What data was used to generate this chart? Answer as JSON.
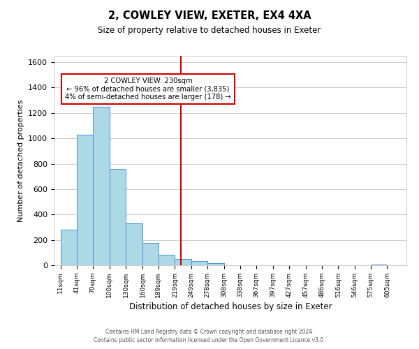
{
  "title": "2, COWLEY VIEW, EXETER, EX4 4XA",
  "subtitle": "Size of property relative to detached houses in Exeter",
  "xlabel": "Distribution of detached houses by size in Exeter",
  "ylabel": "Number of detached properties",
  "bar_left_edges": [
    11,
    41,
    70,
    100,
    130,
    160,
    189,
    219,
    249,
    278,
    308,
    338,
    367,
    397,
    427,
    457,
    486,
    516,
    546,
    575
  ],
  "bar_widths": [
    30,
    29,
    30,
    30,
    30,
    29,
    30,
    30,
    29,
    30,
    30,
    29,
    30,
    30,
    30,
    29,
    30,
    30,
    29,
    30
  ],
  "bar_heights": [
    280,
    1030,
    1250,
    760,
    330,
    175,
    85,
    50,
    35,
    18,
    0,
    0,
    0,
    0,
    0,
    0,
    0,
    0,
    0,
    8
  ],
  "tick_labels": [
    "11sqm",
    "41sqm",
    "70sqm",
    "100sqm",
    "130sqm",
    "160sqm",
    "189sqm",
    "219sqm",
    "249sqm",
    "278sqm",
    "308sqm",
    "338sqm",
    "367sqm",
    "397sqm",
    "427sqm",
    "457sqm",
    "486sqm",
    "516sqm",
    "546sqm",
    "575sqm",
    "605sqm"
  ],
  "tick_positions": [
    11,
    41,
    70,
    100,
    130,
    160,
    189,
    219,
    249,
    278,
    308,
    338,
    367,
    397,
    427,
    457,
    486,
    516,
    546,
    575,
    605
  ],
  "bar_color": "#add8e6",
  "bar_edge_color": "#4a90d9",
  "vline_x": 230,
  "vline_color": "#cc0000",
  "annotation_line1": "2 COWLEY VIEW: 230sqm",
  "annotation_line2": "← 96% of detached houses are smaller (3,835)",
  "annotation_line3": "4% of semi-detached houses are larger (178) →",
  "ylim": [
    0,
    1650
  ],
  "yticks": [
    0,
    200,
    400,
    600,
    800,
    1000,
    1200,
    1400,
    1600
  ],
  "background_color": "#ffffff",
  "grid_color": "#cccccc",
  "footer_line1": "Contains HM Land Registry data © Crown copyright and database right 2024.",
  "footer_line2": "Contains public sector information licensed under the Open Government Licence v3.0."
}
